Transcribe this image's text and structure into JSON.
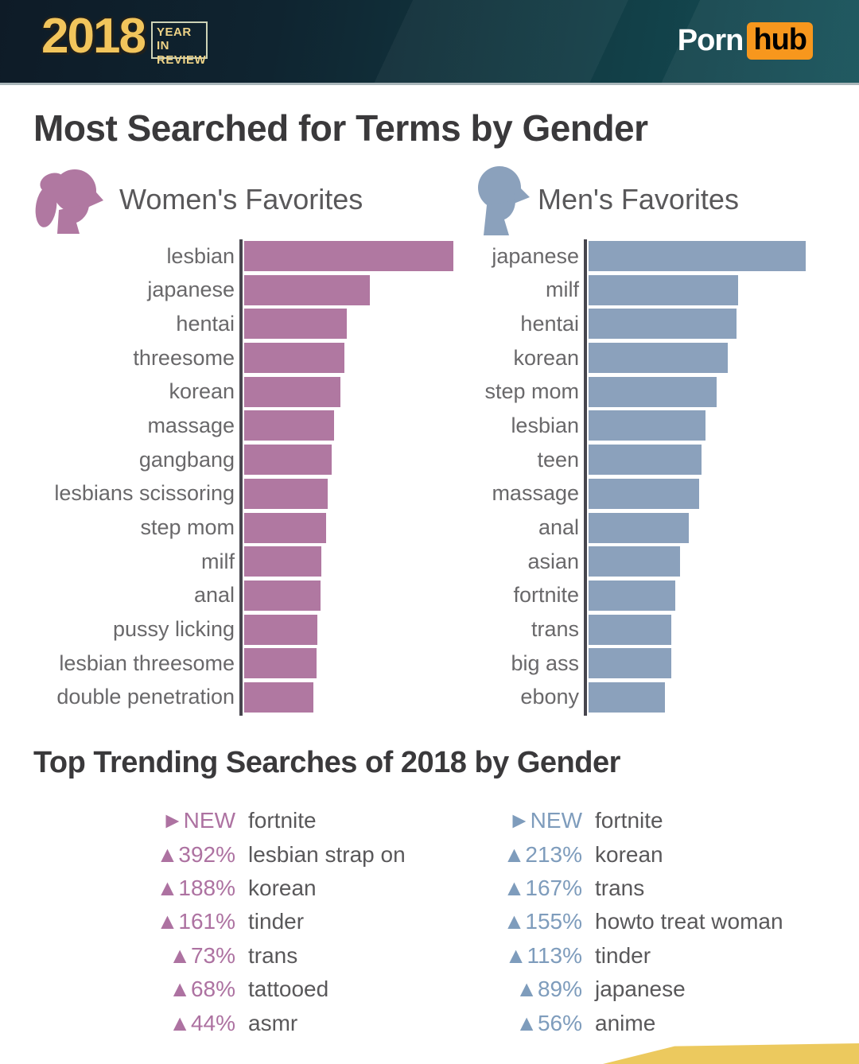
{
  "header": {
    "year": "2018",
    "badge_lines": [
      "YEAR IN",
      "REVIEW"
    ],
    "brand": {
      "porn": "Porn",
      "hub": "hub"
    }
  },
  "colors": {
    "women_bar": "#b078a1",
    "men_bar": "#8ba1bc",
    "women_accent": "#ad72a1",
    "men_accent": "#7e9cbc",
    "hub_orange": "#f7971d",
    "gold_ribbon": "#ecc95e",
    "heading_text": "#3a393b",
    "body_text": "#59585a"
  },
  "most_searched": {
    "title": "Most Searched for Terms by Gender",
    "women_label": "Women's Favorites",
    "men_label": "Men's Favorites"
  },
  "chart_data": [
    {
      "type": "bar",
      "orientation": "horizontal",
      "title": "Women's Favorites",
      "color": "#b078a1",
      "note": "no numeric axis shown; values are relative bar lengths, longest = 100",
      "categories": [
        "lesbian",
        "japanese",
        "hentai",
        "threesome",
        "korean",
        "massage",
        "gangbang",
        "lesbians scissoring",
        "step mom",
        "milf",
        "anal",
        "pussy licking",
        "lesbian threesome",
        "double penetration"
      ],
      "values": [
        100,
        60,
        49,
        48,
        46,
        43,
        42,
        40,
        39,
        37,
        36.5,
        35,
        34.5,
        33
      ]
    },
    {
      "type": "bar",
      "orientation": "horizontal",
      "title": "Men's Favorites",
      "color": "#8ba1bc",
      "note": "no numeric axis shown; values are relative bar lengths, longest = 100",
      "categories": [
        "japanese",
        "milf",
        "hentai",
        "korean",
        "step mom",
        "lesbian",
        "teen",
        "massage",
        "anal",
        "asian",
        "fortnite",
        "trans",
        "big ass",
        "ebony"
      ],
      "values": [
        100,
        69,
        68,
        64,
        59,
        54,
        52,
        51,
        46,
        42,
        40,
        38,
        38,
        35
      ]
    }
  ],
  "trending": {
    "title": "Top Trending Searches of 2018 by Gender",
    "women": [
      {
        "change": "►NEW",
        "term": "fortnite"
      },
      {
        "change": "▲392%",
        "term": "lesbian strap on"
      },
      {
        "change": "▲188%",
        "term": "korean"
      },
      {
        "change": "▲161%",
        "term": "tinder"
      },
      {
        "change": "▲73%",
        "term": "trans"
      },
      {
        "change": "▲68%",
        "term": "tattooed"
      },
      {
        "change": "▲44%",
        "term": "asmr"
      }
    ],
    "men": [
      {
        "change": "►NEW",
        "term": "fortnite"
      },
      {
        "change": "▲213%",
        "term": "korean"
      },
      {
        "change": "▲167%",
        "term": "trans"
      },
      {
        "change": "▲155%",
        "term": "howto treat woman"
      },
      {
        "change": "▲113%",
        "term": "tinder"
      },
      {
        "change": "▲89%",
        "term": "japanese"
      },
      {
        "change": "▲56%",
        "term": "anime"
      }
    ]
  }
}
